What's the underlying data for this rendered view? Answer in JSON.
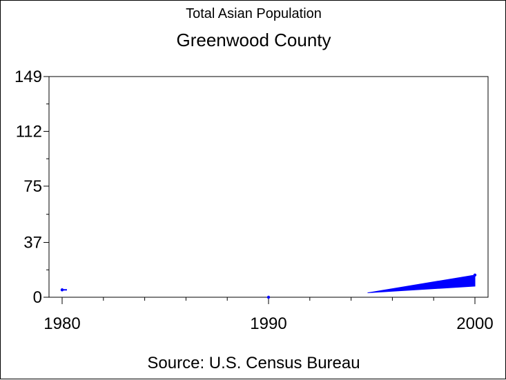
{
  "chart_data": {
    "type": "area",
    "subtitle": "Total Asian Population",
    "title": "Greenwood County",
    "source": "Source: U.S. Census Bureau",
    "x": [
      1980,
      1990,
      2000
    ],
    "values": [
      5,
      0,
      15
    ],
    "xlim": [
      1980,
      2000
    ],
    "ylim": [
      0,
      149
    ],
    "y_ticks": [
      0,
      37,
      75,
      112,
      149
    ],
    "x_ticks": [
      1980,
      1990,
      2000
    ],
    "grid": false,
    "series_color": "#0000ff"
  }
}
